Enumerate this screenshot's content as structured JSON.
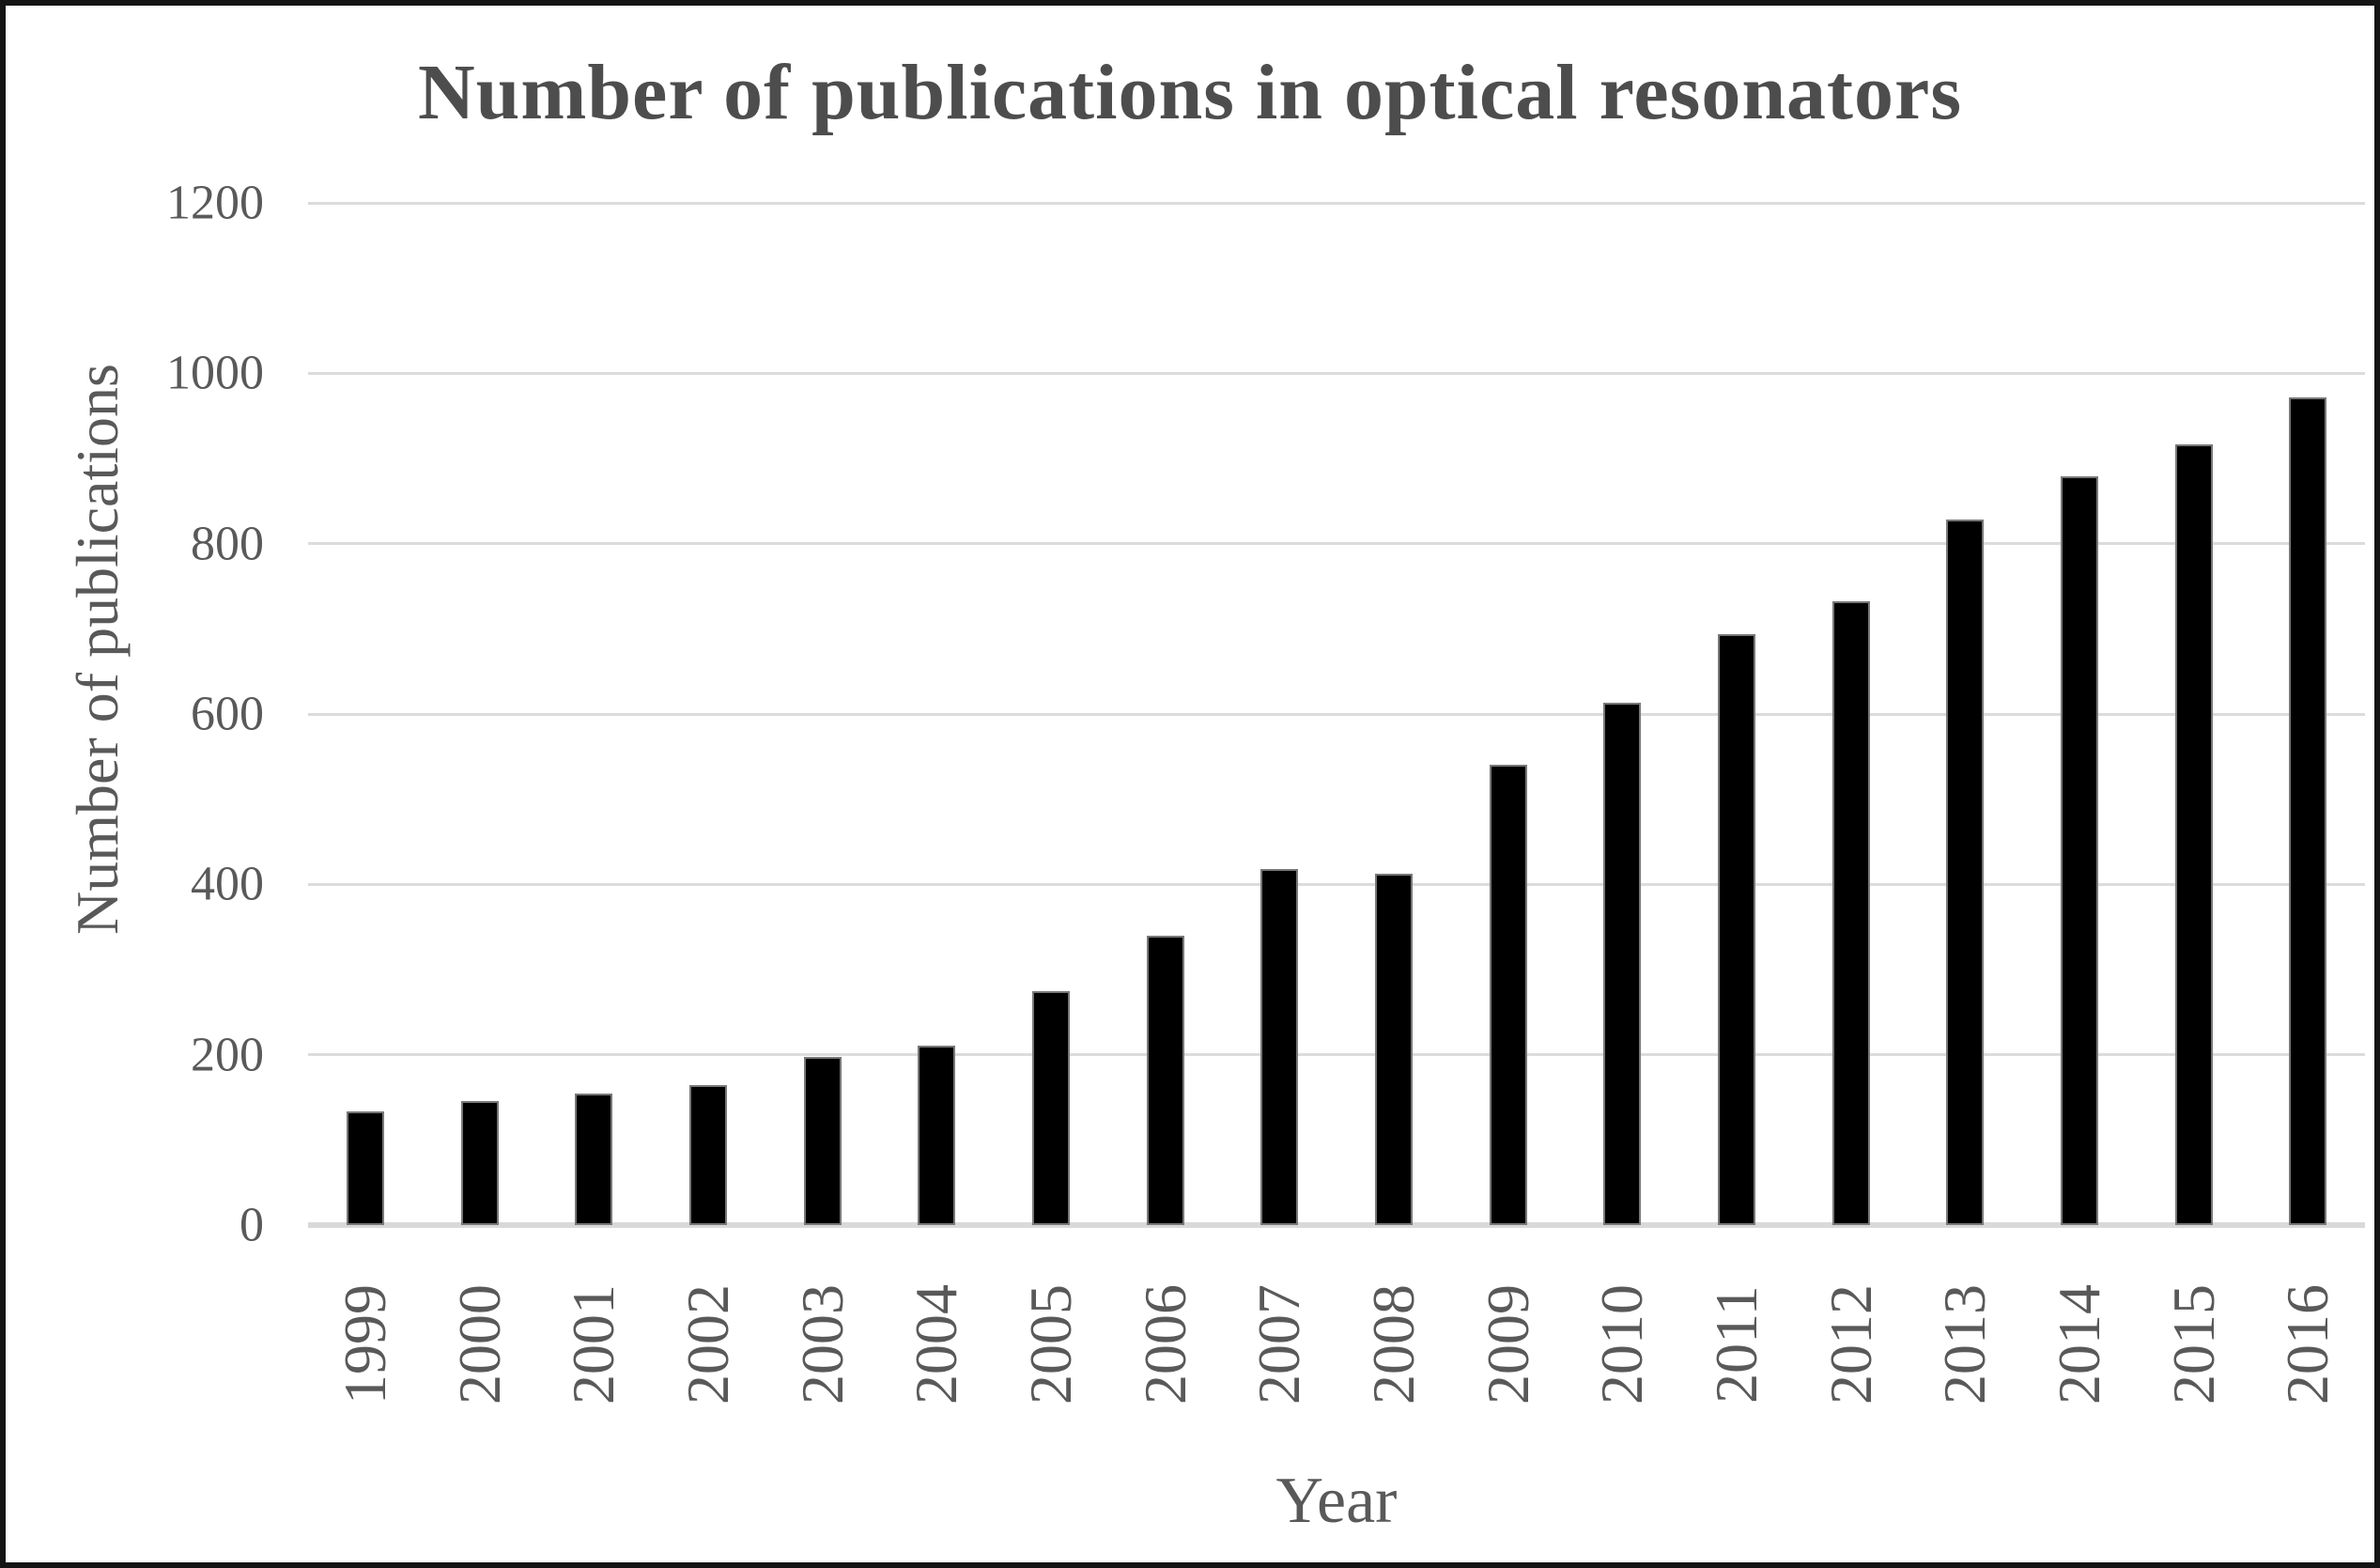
{
  "chart_data": {
    "type": "bar",
    "title": "Number of publications in optical resonators",
    "xlabel": "Year",
    "ylabel": "Number of publications",
    "categories": [
      "1999",
      "2000",
      "2001",
      "2002",
      "2003",
      "2004",
      "2005",
      "2006",
      "2007",
      "2008",
      "2009",
      "2010",
      "2011",
      "2012",
      "2013",
      "2014",
      "2015",
      "2016"
    ],
    "values": [
      133,
      146,
      154,
      164,
      197,
      211,
      275,
      340,
      418,
      413,
      540,
      613,
      694,
      732,
      828,
      879,
      916,
      972
    ],
    "ylim": [
      0,
      1200
    ],
    "yticks": [
      0,
      200,
      400,
      600,
      800,
      1000,
      1200
    ],
    "grid": true,
    "legend": false,
    "bar_color": "#000000",
    "bar_edge_color": "#787878",
    "gridline_color": "#dcdcdc",
    "axis_line_color": "#d9d9d9",
    "tick_text_color": "#595959",
    "title_color": "#4d4d4d",
    "frame_border_color": "#141414"
  }
}
